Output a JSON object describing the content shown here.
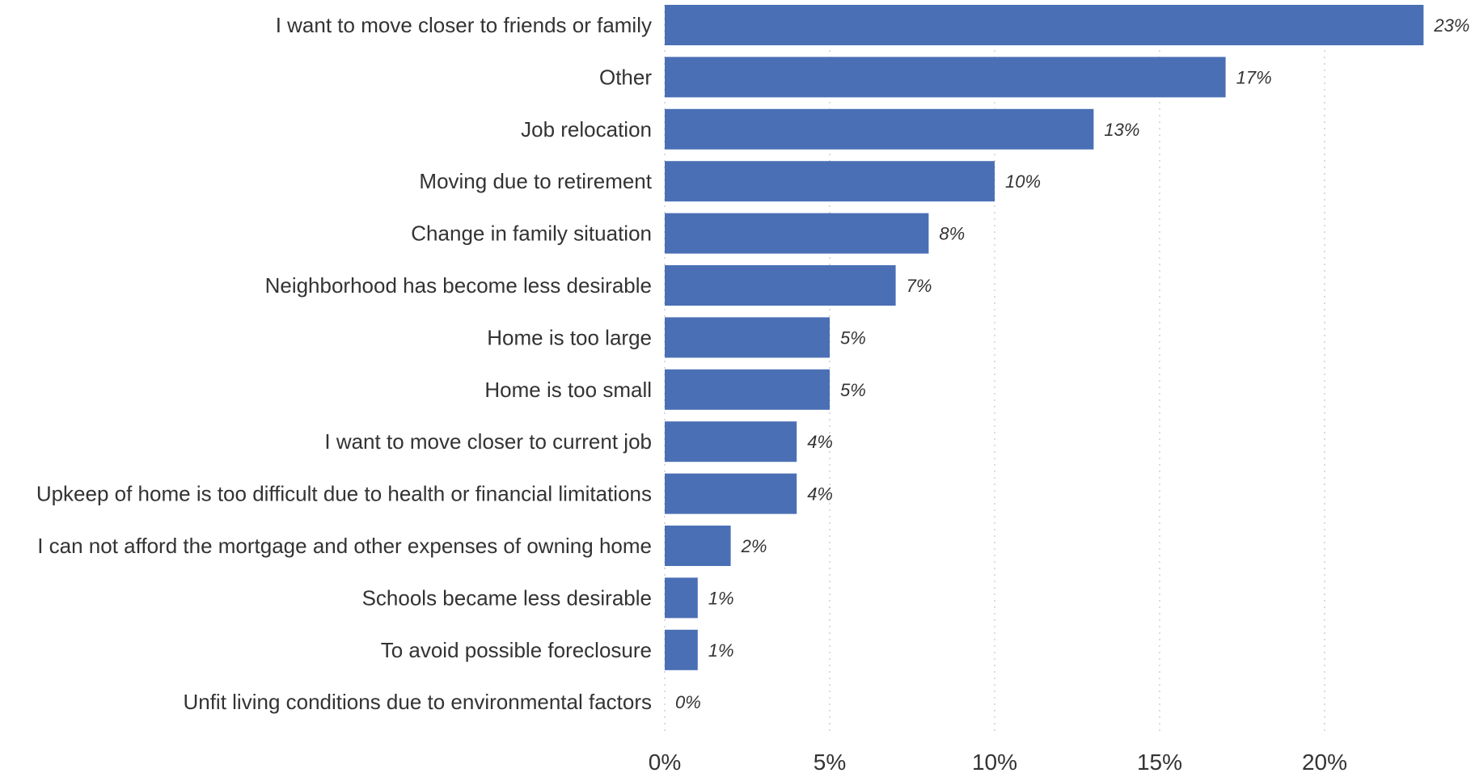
{
  "chart_data": {
    "type": "bar",
    "orientation": "horizontal",
    "categories": [
      "I want to move closer to friends or family",
      "Other",
      "Job relocation",
      "Moving due to retirement",
      "Change in family situation",
      "Neighborhood has become less desirable",
      "Home is too large",
      "Home is too small",
      "I want to move closer to current job",
      "Upkeep of home is too difficult due to health or financial limitations",
      "I can not afford the mortgage and other expenses of owning home",
      "Schools became less desirable",
      "To avoid possible foreclosure",
      "Unfit living conditions due to environmental factors"
    ],
    "values": [
      23,
      17,
      13,
      10,
      8,
      7,
      5,
      5,
      4,
      4,
      2,
      1,
      1,
      0
    ],
    "value_labels": [
      "23%",
      "17%",
      "13%",
      "10%",
      "8%",
      "7%",
      "5%",
      "5%",
      "4%",
      "4%",
      "2%",
      "1%",
      "1%",
      "0%"
    ],
    "xticks": [
      0,
      5,
      10,
      15,
      20
    ],
    "xtick_labels": [
      "0%",
      "5%",
      "10%",
      "15%",
      "20%"
    ],
    "xlim": [
      0,
      24
    ],
    "grid": "vertical-dotted",
    "bar_color": "#4a6fb5",
    "title": "",
    "xlabel": "",
    "ylabel": ""
  }
}
